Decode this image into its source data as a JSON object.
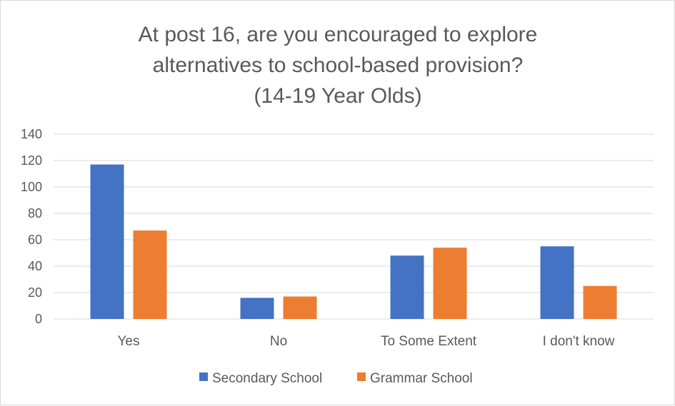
{
  "chart_data": {
    "type": "bar",
    "title": [
      "At post 16, are you encouraged to explore",
      "alternatives to school-based provision?",
      "(14-19 Year Olds)"
    ],
    "categories": [
      "Yes",
      "No",
      "To Some Extent",
      "I don't know"
    ],
    "series": [
      {
        "name": "Secondary School",
        "values": [
          117,
          16,
          48,
          55
        ],
        "color": "#4472c4"
      },
      {
        "name": "Grammar School",
        "values": [
          67,
          17,
          54,
          25
        ],
        "color": "#ed7d31"
      }
    ],
    "ylim": [
      0,
      140
    ],
    "yticks": [
      "0",
      "20",
      "40",
      "60",
      "80",
      "100",
      "120",
      "140"
    ],
    "xlabel": "",
    "ylabel": "",
    "grid": true,
    "legend": "bottom"
  }
}
